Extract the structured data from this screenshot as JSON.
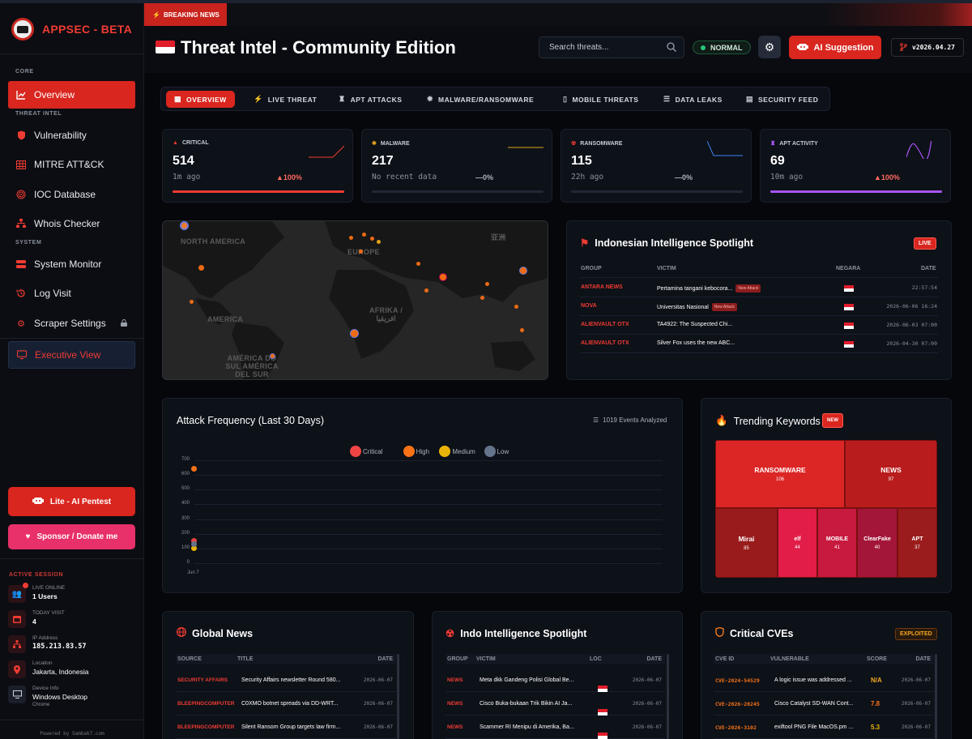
{
  "sidebar": {
    "brand": "APPSEC - BETA",
    "sections": {
      "core": "CORE",
      "threat_intel": "THREAT INTEL",
      "system": "SYSTEM"
    },
    "nav": {
      "overview": "Overview",
      "vulnerability": "Vulnerability",
      "mitre": "MITRE ATT&CK",
      "ioc": "IOC Database",
      "whois": "Whois Checker",
      "system_monitor": "System Monitor",
      "log_visit": "Log Visit",
      "scraper": "Scraper Settings",
      "executive": "Executive View"
    },
    "lite_button": "Lite - AI Pentest",
    "sponsor_button": "Sponsor / Donate me",
    "active_session": {
      "title": "ACTIVE SESSION",
      "live_label": "LIVE ONLINE",
      "live_value": "1 Users",
      "visit_label": "TODAY VISIT",
      "visit_value": "4",
      "ip_label": "IP Address",
      "ip_value": "185.213.83.57",
      "loc_label": "Location",
      "loc_value": "Jakarta, Indonesia",
      "device_label": "Device Info",
      "device_value": "Windows Desktop",
      "device_sub": "Chrome"
    },
    "powered": "Powered by Sambak7.com"
  },
  "breaking": {
    "label": "BREAKING NEWS"
  },
  "header": {
    "title": "Threat Intel - Community Edition",
    "search_placeholder": "Search threats...",
    "status": "NORMAL",
    "ai_button": "AI Suggestion",
    "version": "v2026.04.27"
  },
  "tabs": [
    "OVERVIEW",
    "LIVE THREAT",
    "APT ATTACKS",
    "MALWARE/RANSOMWARE",
    "MOBILE THREATS",
    "DATA LEAKS",
    "SECURITY FEED"
  ],
  "stats": [
    {
      "label": "CRITICAL",
      "value": "514",
      "sub": "1m ago",
      "change": "▲100%",
      "color": "#ef3b33",
      "progress": 1.0
    },
    {
      "label": "MALWARE",
      "value": "217",
      "sub": "No recent data",
      "change": "—0%",
      "color": "#e0a21b",
      "progress": 0.0
    },
    {
      "label": "RANSOMWARE",
      "value": "115",
      "sub": "22h ago",
      "change": "—0%",
      "color": "#3b82f6",
      "progress": 0.0
    },
    {
      "label": "APT ACTIVITY",
      "value": "69",
      "sub": "10m ago",
      "change": "▲100%",
      "color": "#a855f7",
      "progress": 1.0
    }
  ],
  "map": {
    "labels": {
      "north_america": "NORTH AMERICA",
      "europe": "EUROPE",
      "asia": "亚洲",
      "africa": "AFRIKA / افريقيا",
      "south_america": "AMÉRICA DO SUL AMÉRICA DEL SUR",
      "america": "AMERICA"
    }
  },
  "spotlight": {
    "title": "Indonesian Intelligence Spotlight",
    "badge": "LIVE",
    "columns": {
      "group": "GROUP",
      "victim": "VICTIM",
      "country": "NEGARA",
      "date": "DATE"
    },
    "new_attack_label": "New Attack",
    "rows": [
      {
        "group": "ANTARA NEWS",
        "victim": "Pertamina tangani kebocora...",
        "new": true,
        "date": "22:57:54"
      },
      {
        "group": "NOVA",
        "victim": "Universitas Nasional",
        "new": true,
        "date": "2026-06-06 16:24"
      },
      {
        "group": "ALIENVAULT OTX",
        "victim": "TA4922: The Suspected Chi...",
        "new": false,
        "date": "2026-06-03 07:00"
      },
      {
        "group": "ALIENVAULT OTX",
        "victim": "Silver Fox uses the new ABC...",
        "new": false,
        "date": "2026-04-30 07:00"
      }
    ]
  },
  "attack": {
    "title": "Attack Frequency (Last 30 Days)",
    "events": "1019 Events Analyzed"
  },
  "chart_data": {
    "type": "scatter",
    "title": "Attack Frequency (Last 30 Days)",
    "categories": [
      "Jun 7"
    ],
    "series": [
      {
        "name": "Critical",
        "color": "#ef4444",
        "values": [
          150
        ]
      },
      {
        "name": "High",
        "color": "#f97316",
        "values": [
          640
        ]
      },
      {
        "name": "Medium",
        "color": "#eab308",
        "values": [
          100
        ]
      },
      {
        "name": "Low",
        "color": "#64748b",
        "values": [
          130
        ]
      }
    ],
    "yticks": [
      0,
      100,
      200,
      300,
      400,
      500,
      600,
      700
    ],
    "ylim": [
      0,
      700
    ],
    "legend": "top-center",
    "grid": true
  },
  "trending": {
    "title": "Trending Keywords",
    "badge": "NEW",
    "items": [
      {
        "keyword": "RANSOMWARE",
        "count": "106"
      },
      {
        "keyword": "NEWS",
        "count": "97"
      },
      {
        "keyword": "Mirai",
        "count": "85"
      },
      {
        "keyword": "elf",
        "count": "44"
      },
      {
        "keyword": "MOBILE",
        "count": "41"
      },
      {
        "keyword": "ClearFake",
        "count": "40"
      },
      {
        "keyword": "APT",
        "count": "37"
      }
    ]
  },
  "global_news": {
    "title": "Global News",
    "columns": {
      "source": "SOURCE",
      "title": "TITLE",
      "date": "DATE"
    },
    "rows": [
      {
        "source": "SECURITY AFFAIRS",
        "title": "Security Affairs newsletter Round 580...",
        "date": "2026-06-07"
      },
      {
        "source": "BLEEPINGCOMPUTER",
        "title": "C0XMO botnet spreads via DD-WRT...",
        "date": "2026-06-07"
      },
      {
        "source": "BLEEPINGCOMPUTER",
        "title": "Silent Ransom Group targets law firm...",
        "date": "2026-06-07"
      }
    ]
  },
  "indo_spotlight": {
    "title": "Indo Intelligence Spotlight",
    "columns": {
      "group": "GROUP",
      "victim": "VICTIM",
      "loc": "LOC",
      "date": "DATE"
    },
    "rows": [
      {
        "group": "NEWS",
        "victim": "Meta dkk Gandeng Polisi Global Be...",
        "date": "2026-06-07"
      },
      {
        "group": "NEWS",
        "victim": "Cisco Buka-bukaan Trik Bikin AI Ja...",
        "date": "2026-06-07"
      },
      {
        "group": "NEWS",
        "victim": "Scammer RI Menipu di Amerika, Ba...",
        "date": "2026-06-07"
      }
    ]
  },
  "cves": {
    "title": "Critical CVEs",
    "badge": "EXPLOITED",
    "columns": {
      "id": "CVE ID",
      "vuln": "VULNERABLE",
      "score": "SCORE",
      "date": "DATE"
    },
    "rows": [
      {
        "id": "CVE-2024-54529",
        "vuln": "A logic issue was addressed ...",
        "score": "N/A",
        "date": "2026-06-07"
      },
      {
        "id": "CVE-2026-20245",
        "vuln": "Cisco Catalyst SD-WAN Cont...",
        "score": "7.8",
        "date": "2026-06-07"
      },
      {
        "id": "CVE-2026-3102",
        "vuln": "exiftool PNG File MacOS.pm ...",
        "score": "5.3",
        "date": "2026-06-07"
      }
    ]
  }
}
